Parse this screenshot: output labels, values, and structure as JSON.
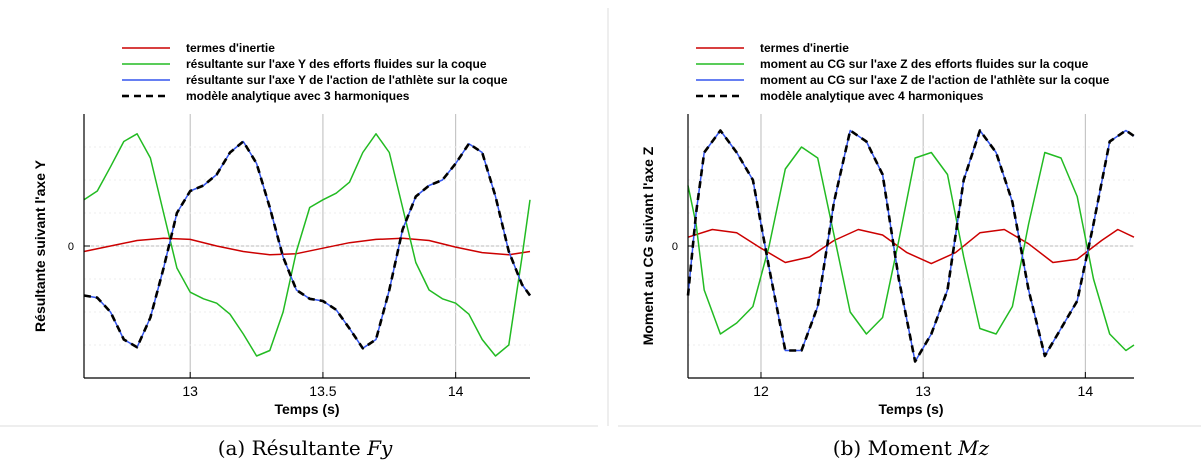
{
  "chart_data": [
    {
      "type": "line",
      "caption_prefix": "(a) Résultante ",
      "caption_var": "Fy",
      "xlabel": "Temps (s)",
      "ylabel": "Résultante suivant l'axe Y",
      "xlim": [
        12.6,
        14.28
      ],
      "ylim": [
        -1.2,
        1.2
      ],
      "x_ticks": [
        13,
        13.5,
        14
      ],
      "x_tick_labels": [
        "13",
        "13.5",
        "14"
      ],
      "y_ticks": [
        0
      ],
      "y_tick_labels": [
        "0"
      ],
      "grid": true,
      "legend_position": "top",
      "series": [
        {
          "name": "termes d'inertie",
          "color": "#cc0000",
          "style": "solid",
          "x": [
            12.6,
            12.7,
            12.8,
            12.9,
            13.0,
            13.1,
            13.2,
            13.3,
            13.4,
            13.5,
            13.6,
            13.7,
            13.8,
            13.9,
            14.0,
            14.1,
            14.2,
            14.28
          ],
          "y": [
            -0.05,
            0.0,
            0.05,
            0.07,
            0.06,
            0.0,
            -0.05,
            -0.08,
            -0.07,
            -0.02,
            0.03,
            0.06,
            0.07,
            0.05,
            -0.01,
            -0.06,
            -0.08,
            -0.05
          ]
        },
        {
          "name": "résultante sur l'axe Y des efforts fluides sur la coque",
          "color": "#22bb22",
          "style": "solid",
          "x": [
            12.6,
            12.65,
            12.7,
            12.75,
            12.8,
            12.85,
            12.9,
            12.95,
            13.0,
            13.05,
            13.1,
            13.15,
            13.2,
            13.25,
            13.3,
            13.35,
            13.4,
            13.45,
            13.5,
            13.55,
            13.6,
            13.65,
            13.7,
            13.75,
            13.8,
            13.85,
            13.9,
            13.95,
            14.0,
            14.05,
            14.1,
            14.15,
            14.2,
            14.25,
            14.28
          ],
          "y": [
            0.42,
            0.5,
            0.72,
            0.95,
            1.02,
            0.8,
            0.3,
            -0.2,
            -0.42,
            -0.48,
            -0.52,
            -0.62,
            -0.8,
            -1.0,
            -0.95,
            -0.6,
            -0.05,
            0.35,
            0.42,
            0.48,
            0.58,
            0.85,
            1.02,
            0.85,
            0.35,
            -0.15,
            -0.4,
            -0.48,
            -0.52,
            -0.62,
            -0.85,
            -1.0,
            -0.9,
            -0.1,
            0.42
          ]
        },
        {
          "name": "résultante sur l'axe Y de l'action de l'athlète sur la coque",
          "color": "#3355ee",
          "style": "solid",
          "x": [
            12.6,
            12.65,
            12.7,
            12.75,
            12.8,
            12.85,
            12.9,
            12.95,
            13.0,
            13.05,
            13.1,
            13.15,
            13.2,
            13.25,
            13.3,
            13.35,
            13.4,
            13.45,
            13.5,
            13.55,
            13.6,
            13.65,
            13.7,
            13.75,
            13.8,
            13.85,
            13.9,
            13.95,
            14.0,
            14.05,
            14.1,
            14.15,
            14.2,
            14.25,
            14.28
          ],
          "y": [
            -0.45,
            -0.47,
            -0.6,
            -0.85,
            -0.92,
            -0.65,
            -0.2,
            0.3,
            0.5,
            0.55,
            0.65,
            0.85,
            0.95,
            0.75,
            0.35,
            -0.1,
            -0.4,
            -0.48,
            -0.5,
            -0.58,
            -0.75,
            -0.93,
            -0.85,
            -0.4,
            0.15,
            0.45,
            0.55,
            0.6,
            0.75,
            0.93,
            0.85,
            0.45,
            -0.05,
            -0.35,
            -0.45
          ]
        },
        {
          "name": "modèle analytique avec 3 harmoniques",
          "color": "#000000",
          "style": "dashed",
          "x": [
            12.6,
            12.65,
            12.7,
            12.75,
            12.8,
            12.85,
            12.9,
            12.95,
            13.0,
            13.05,
            13.1,
            13.15,
            13.2,
            13.25,
            13.3,
            13.35,
            13.4,
            13.45,
            13.5,
            13.55,
            13.6,
            13.65,
            13.7,
            13.75,
            13.8,
            13.85,
            13.9,
            13.95,
            14.0,
            14.05,
            14.1,
            14.15,
            14.2,
            14.25,
            14.28
          ],
          "y": [
            -0.45,
            -0.47,
            -0.6,
            -0.85,
            -0.92,
            -0.65,
            -0.2,
            0.3,
            0.5,
            0.55,
            0.65,
            0.85,
            0.95,
            0.75,
            0.35,
            -0.1,
            -0.4,
            -0.48,
            -0.5,
            -0.58,
            -0.75,
            -0.93,
            -0.85,
            -0.4,
            0.15,
            0.45,
            0.55,
            0.6,
            0.75,
            0.93,
            0.85,
            0.45,
            -0.05,
            -0.35,
            -0.45
          ]
        }
      ]
    },
    {
      "type": "line",
      "caption_prefix": "(b) Moment ",
      "caption_var": "Mz",
      "xlabel": "Temps (s)",
      "ylabel": "Moment au CG suivant l'axe Z",
      "xlim": [
        11.55,
        14.3
      ],
      "ylim": [
        -1.2,
        1.2
      ],
      "x_ticks": [
        12,
        13,
        14
      ],
      "x_tick_labels": [
        "12",
        "13",
        "14"
      ],
      "y_ticks": [
        0
      ],
      "y_tick_labels": [
        "0"
      ],
      "grid": true,
      "legend_position": "top",
      "series": [
        {
          "name": "termes d'inertie",
          "color": "#cc0000",
          "style": "solid",
          "x": [
            11.55,
            11.7,
            11.85,
            12.0,
            12.15,
            12.3,
            12.45,
            12.6,
            12.75,
            12.9,
            13.05,
            13.2,
            13.35,
            13.5,
            13.65,
            13.8,
            13.95,
            14.1,
            14.2,
            14.3
          ],
          "y": [
            0.08,
            0.15,
            0.12,
            -0.02,
            -0.15,
            -0.1,
            0.05,
            0.15,
            0.1,
            -0.06,
            -0.16,
            -0.06,
            0.12,
            0.15,
            0.02,
            -0.15,
            -0.12,
            0.05,
            0.15,
            0.08
          ]
        },
        {
          "name": "moment au CG sur l'axe Z des efforts fluides sur la coque",
          "color": "#22bb22",
          "style": "solid",
          "x": [
            11.55,
            11.6,
            11.65,
            11.75,
            11.85,
            11.95,
            12.05,
            12.15,
            12.25,
            12.35,
            12.45,
            12.55,
            12.65,
            12.75,
            12.85,
            12.95,
            13.05,
            13.15,
            13.25,
            13.35,
            13.45,
            13.55,
            13.65,
            13.75,
            13.85,
            13.95,
            14.05,
            14.15,
            14.25,
            14.3
          ],
          "y": [
            0.55,
            0.2,
            -0.4,
            -0.8,
            -0.7,
            -0.55,
            0.0,
            0.7,
            0.9,
            0.8,
            0.1,
            -0.6,
            -0.8,
            -0.65,
            0.05,
            0.8,
            0.85,
            0.65,
            -0.1,
            -0.75,
            -0.8,
            -0.55,
            0.2,
            0.85,
            0.8,
            0.45,
            -0.3,
            -0.8,
            -0.95,
            -0.9
          ]
        },
        {
          "name": "moment au CG sur l'axe Z de l'action de l'athlète sur la coque",
          "color": "#3355ee",
          "style": "solid",
          "x": [
            11.55,
            11.6,
            11.65,
            11.75,
            11.85,
            11.95,
            12.05,
            12.15,
            12.25,
            12.35,
            12.45,
            12.55,
            12.65,
            12.75,
            12.85,
            12.95,
            13.05,
            13.15,
            13.25,
            13.35,
            13.45,
            13.55,
            13.65,
            13.75,
            13.85,
            13.95,
            14.05,
            14.15,
            14.25,
            14.3
          ],
          "y": [
            -0.45,
            0.3,
            0.85,
            1.05,
            0.85,
            0.6,
            -0.2,
            -0.95,
            -0.95,
            -0.55,
            0.4,
            1.05,
            0.95,
            0.65,
            -0.3,
            -1.05,
            -0.8,
            -0.4,
            0.6,
            1.05,
            0.85,
            0.4,
            -0.4,
            -1.0,
            -0.75,
            -0.5,
            0.2,
            0.95,
            1.05,
            1.0
          ]
        },
        {
          "name": "modèle analytique avec 4 harmoniques",
          "color": "#000000",
          "style": "dashed",
          "x": [
            11.55,
            11.6,
            11.65,
            11.75,
            11.85,
            11.95,
            12.05,
            12.15,
            12.25,
            12.35,
            12.45,
            12.55,
            12.65,
            12.75,
            12.85,
            12.95,
            13.05,
            13.15,
            13.25,
            13.35,
            13.45,
            13.55,
            13.65,
            13.75,
            13.85,
            13.95,
            14.05,
            14.15,
            14.25,
            14.3
          ],
          "y": [
            -0.45,
            0.3,
            0.85,
            1.05,
            0.85,
            0.6,
            -0.2,
            -0.95,
            -0.95,
            -0.55,
            0.4,
            1.05,
            0.95,
            0.65,
            -0.3,
            -1.05,
            -0.8,
            -0.4,
            0.6,
            1.05,
            0.85,
            0.4,
            -0.4,
            -1.0,
            -0.75,
            -0.5,
            0.2,
            0.95,
            1.05,
            1.0
          ]
        }
      ]
    }
  ]
}
